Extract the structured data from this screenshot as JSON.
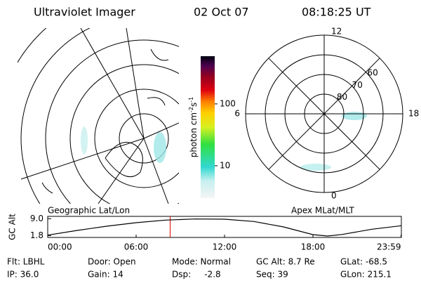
{
  "header": {
    "title": "Ultraviolet Imager",
    "date": "02 Oct 07",
    "time": "08:18:25 UT"
  },
  "left_map": {
    "label": "Geographic Lat/Lon"
  },
  "colorbar": {
    "label": "photon cm",
    "exp1": "-2",
    "unit2": "s",
    "exp2": "-1",
    "lim": [
      3,
      590
    ],
    "ticks": [
      10,
      100
    ],
    "log": true
  },
  "right_map": {
    "label": "Apex MLat/MLT",
    "lat_labels": [
      80,
      70,
      60
    ],
    "mlt_labels": [
      12,
      18,
      6,
      0
    ]
  },
  "chart_data": {
    "type": "line",
    "ylabel": "GC Alt",
    "x": [
      0,
      2,
      4,
      6,
      8,
      10,
      12,
      14,
      16,
      18,
      19,
      20,
      22,
      24
    ],
    "series": [
      {
        "color": "#000000",
        "values": [
          2.0,
          4.0,
          5.8,
          7.3,
          8.4,
          8.9,
          8.8,
          7.8,
          5.5,
          2.2,
          1.6,
          2.3,
          4.5,
          6.0
        ]
      }
    ],
    "xlim": [
      0,
      24
    ],
    "ylim": [
      1,
      10
    ],
    "xticks": [
      {
        "value": 0,
        "label": "00:00"
      },
      {
        "value": 6,
        "label": "06:00"
      },
      {
        "value": 12,
        "label": "12:00"
      },
      {
        "value": 18,
        "label": "18:00"
      },
      {
        "value": 23.98,
        "label": "23:59"
      }
    ],
    "yticks": [
      1.8,
      {
        "value": 9,
        "label": "9.0"
      }
    ],
    "marker": 8.31,
    "marker_color": "#e00000"
  },
  "footer": {
    "rows": [
      [
        "Flt: LBHL",
        "Door: Open",
        "Mode: Normal",
        "GC Alt: 8.7 Re",
        "GLat: -68.5"
      ],
      [
        "IP: 36.0",
        "Gain: 14",
        "Dsp:     -2.8",
        "Seq: 39",
        "GLon: 215.1"
      ]
    ]
  }
}
